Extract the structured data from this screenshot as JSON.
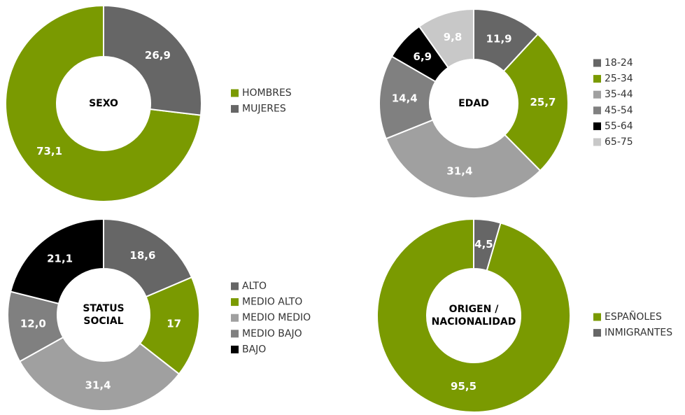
{
  "chart_data": [
    {
      "type": "pie",
      "title": [
        "SEXO"
      ],
      "categories": [
        "HOMBRES",
        "MUJERES"
      ],
      "values": [
        73.1,
        26.9
      ],
      "value_labels": [
        "73,1",
        "26,9"
      ],
      "colors": [
        "#7a9a01",
        "#666666"
      ]
    },
    {
      "type": "pie",
      "title": [
        "EDAD"
      ],
      "categories": [
        "18-24",
        "25-34",
        "35-44",
        "45-54",
        "55-64",
        "65-75"
      ],
      "values": [
        11.9,
        25.7,
        31.4,
        14.4,
        6.9,
        9.8
      ],
      "value_labels": [
        "11,9",
        "25,7",
        "31,4",
        "14,4",
        "6,9",
        "9,8"
      ],
      "colors": [
        "#666666",
        "#7a9a01",
        "#a0a0a0",
        "#808080",
        "#000000",
        "#c8c8c8"
      ]
    },
    {
      "type": "pie",
      "title": [
        "STATUS",
        "SOCIAL"
      ],
      "categories": [
        "ALTO",
        "MEDIO ALTO",
        "MEDIO MEDIO",
        "MEDIO BAJO",
        "BAJO"
      ],
      "values": [
        18.6,
        17,
        31.4,
        12.0,
        21.1
      ],
      "value_labels": [
        "18,6",
        "17",
        "31,4",
        "12,0",
        "21,1"
      ],
      "colors": [
        "#666666",
        "#7a9a01",
        "#a0a0a0",
        "#808080",
        "#000000"
      ]
    },
    {
      "type": "pie",
      "title": [
        "ORIGEN /",
        "NACIONALIDAD"
      ],
      "categories": [
        "ESPAÑOLES",
        "INMIGRANTES"
      ],
      "values": [
        95.5,
        4.5
      ],
      "value_labels": [
        "95,5",
        "4,5"
      ],
      "colors": [
        "#7a9a01",
        "#666666"
      ]
    }
  ]
}
